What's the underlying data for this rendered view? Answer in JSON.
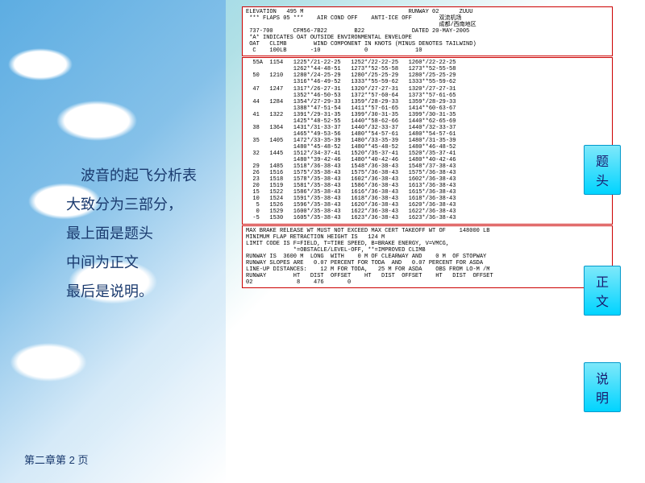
{
  "desc_lines": [
    "　波音的起飞分析表",
    "大致分为三部分，",
    "最上面是题头",
    "中间为正文",
    "最后是说明。"
  ],
  "footer": "第二章第 2 页",
  "labels": {
    "header": "题头",
    "body": "正文",
    "notes": "说明"
  },
  "header_lines": [
    "ELEVATION   495 M                               RUNWAY 02      ZUUU",
    "",
    " *** FLAPS 05 ***    AIR COND OFF    ANTI-ICE OFF        双流机场",
    "                                                         成都/西南地区",
    " 737-700      CFM56-7B22        B22              DATED 20-MAY-2005",
    " *A* INDICATES OAT OUTSIDE ENVIRONMENTAL ENVELOPE",
    " OAT   CLIMB        WIND COMPONENT IN KNOTS (MINUS DENOTES TAILWIND)",
    "  C    100LB       -10             0              10"
  ],
  "body_lines": [
    "  55A  1154   1225*/21-22-25   1252*/22-22-25   1260*/22-22-25",
    "              1262**44-48-51   1273**52-55-58   1273**52-55-58",
    "  50   1210   1280*/24-25-29   1280*/25-25-29   1280*/25-25-29",
    "              1316**46-49-52   1333**55-59-62   1333**55-59-62",
    "  47   1247   1317*/26-27-31   1320*/27-27-31   1320*/27-27-31",
    "              1352**46-50-53   1372**57-60-64   1373**57-61-65",
    "  44   1284   1354*/27-29-33   1359*/28-29-33   1359*/28-29-33",
    "              1388**47-51-54   1411**57-61-65   1414**60-63-67",
    "  41   1322   1391*/29-31-35   1399*/30-31-35   1399*/30-31-35",
    "              1425**48-52-55   1440**58-62-66   1440**62-65-69",
    "  38   1364   1431*/31-33-37   1440*/32-33-37   1440*/32-33-37",
    "              1465**49-53-56   1480**54-57-61   1480**54-57-61",
    "  35   1405   1472*/33-35-39   1480*/33-35-39   1480*/31-35-39",
    "              1480**45-48-52   1480**45-48-52   1480**46-48-52",
    "  32   1445   1512*/34-37-41   1520*/35-37-41   1520*/35-37-41",
    "              1480**39-42-46   1480**40-42-46   1480**40-42-46",
    "  29   1485   1518*/36-38-43   1548*/36-38-43   1548*/37-38-43",
    "  26   1516   1575*/35-38-43   1575*/36-38-43   1575*/36-38-43",
    "  23   1518   1578*/35-38-43   1602*/36-38-43   1602*/36-38-43",
    "  20   1519   1581*/35-38-43   1586*/36-38-43   1613*/36-38-43",
    "  15   1522   1586*/35-38-43   1616*/36-38-43   1615*/36-38-43",
    "  10   1524   1591*/35-38-43   1618*/36-38-43   1618*/36-38-43",
    "   5   1526   1596*/35-38-43   1620*/36-38-43   1620*/36-38-43",
    "   0   1529   1600*/35-38-43   1622*/36-38-43   1622*/36-38-43",
    "  -5   1530   1605*/35-38-43   1623*/36-38-43   1623*/36-38-43"
  ],
  "notes_lines": [
    "MAX BRAKE RELEASE WT MUST NOT EXCEED MAX CERT TAKEOFF WT OF    148000 LB",
    "MINIMUM FLAP RETRACTION HEIGHT IS   124 M",
    "LIMIT CODE IS F=FIELD, T=TIRE SPEED, B=BRAKE ENERGY, V=VMCG,",
    "              *=OBSTACLE/LEVEL-OFF, **=IMPROVED CLIMB",
    "RUNWAY IS  3600 M  LONG  WITH    0 M OF CLEARWAY AND    0 M  OF STOPWAY",
    "RUNWAY SLOPES ARE   0.07 PERCENT FOR TODA  AND   0.07 PERCENT FOR ASDA",
    "LINE-UP DISTANCES:    12 M FOR TODA,   25 M FOR ASDA    OBS FROM LO-M /M",
    "RUNWAY        HT   DIST  OFFSET    HT   DIST  OFFSET    HT   DIST  OFFSET",
    "02             8    476       0"
  ],
  "colors": {
    "box_border": "#c00",
    "label_bg_top": "#7EE8FA",
    "label_bg_bot": "#00D4FF",
    "text": "#1a3a6e"
  }
}
